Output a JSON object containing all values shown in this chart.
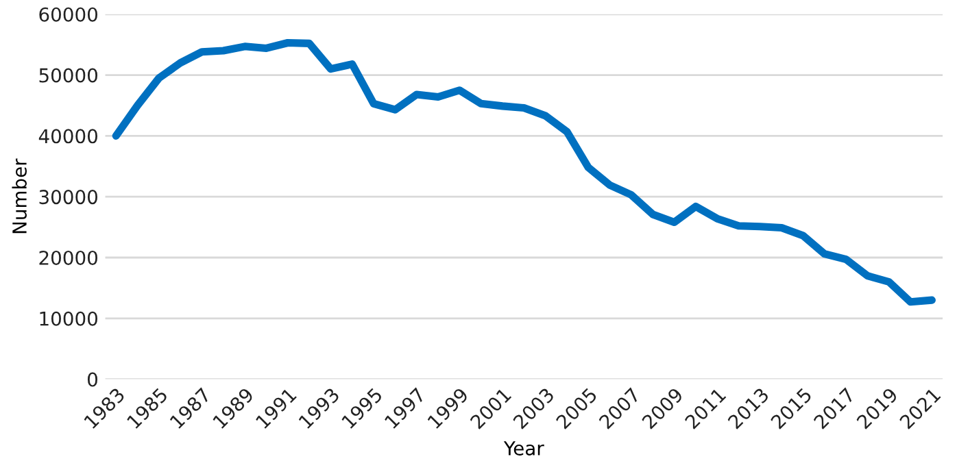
{
  "chart_data": {
    "type": "line",
    "xlabel": "Year",
    "ylabel": "Number",
    "categories": [
      "1983",
      null,
      "1985",
      null,
      "1987",
      null,
      "1989",
      null,
      "1991",
      null,
      "1993",
      null,
      "1995",
      null,
      "1997",
      null,
      "1999",
      null,
      "2001",
      null,
      "2003",
      null,
      "2005",
      null,
      "2007",
      null,
      "2009",
      null,
      "2011",
      null,
      "2013",
      null,
      "2015",
      null,
      "2017",
      null,
      "2019",
      null,
      "2021"
    ],
    "series": [
      {
        "color": "#0070c0",
        "values": [
          40000,
          45000,
          49500,
          52000,
          53800,
          54000,
          54700,
          54400,
          55300,
          55200,
          51000,
          51800,
          45300,
          44300,
          46800,
          46400,
          47500,
          45300,
          44900,
          44600,
          43300,
          40700,
          34800,
          31900,
          30300,
          27100,
          25800,
          28400,
          26400,
          25200,
          25100,
          24900,
          23600,
          20600,
          19700,
          17000,
          16000,
          12700,
          13000
        ]
      }
    ],
    "ylim": [
      0,
      60000
    ],
    "yticks": [
      0,
      10000,
      20000,
      30000,
      40000,
      50000,
      60000
    ],
    "grid": "y",
    "line_style": "solid",
    "marker": "none"
  }
}
